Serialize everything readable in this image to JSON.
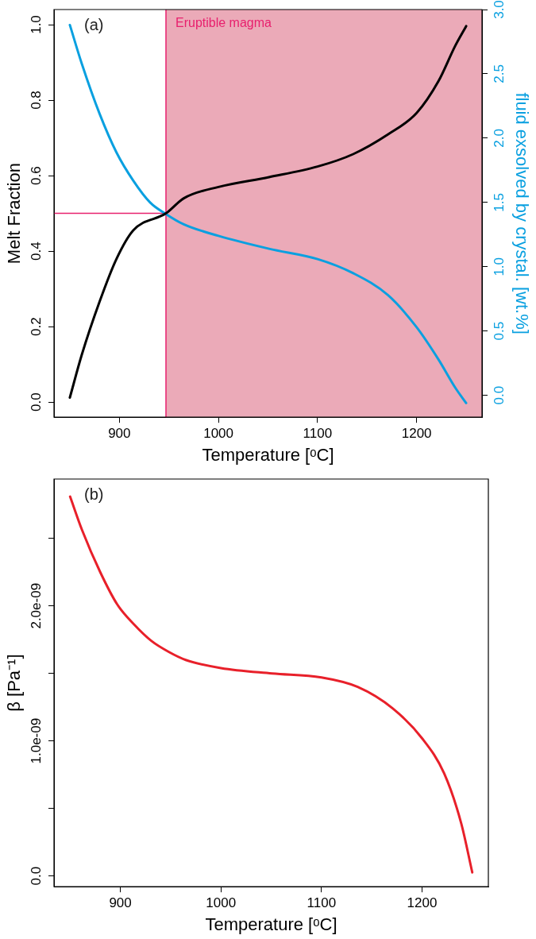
{
  "chart_data": [
    {
      "type": "line",
      "xlabel": "Temperature [ᵒC]",
      "ylabel": "Melt Fraction",
      "y2label": "fluid exsolved by crystal. [wt.%]",
      "annotations": [
        "(a)"
      ],
      "xlim": [
        834,
        1266
      ],
      "xticks": [
        900,
        1000,
        1100,
        1200
      ],
      "ylim": [
        -0.04,
        1.04
      ],
      "yticks": [
        {
          "value": 0,
          "label": "0.0"
        },
        {
          "value": 0.2,
          "label": "0.2"
        },
        {
          "value": 0.4,
          "label": "0.4"
        },
        {
          "value": 0.6,
          "label": "0.6"
        },
        {
          "value": 0.8,
          "label": "0.8"
        },
        {
          "value": 1,
          "label": "1.0"
        }
      ],
      "y2lim": [
        -0.17,
        3.0
      ],
      "y2ticks": [
        {
          "value": 0,
          "label": "0.0"
        },
        {
          "value": 0.5,
          "label": "0.5"
        },
        {
          "value": 1,
          "label": "1.0"
        },
        {
          "value": 1.5,
          "label": "1.5"
        },
        {
          "value": 2,
          "label": "2.0"
        },
        {
          "value": 2.5,
          "label": "2.5"
        },
        {
          "value": 3,
          "label": "3.0"
        }
      ],
      "series": [
        {
          "color": "#000000",
          "x": [
            850,
            862,
            880,
            897,
            914,
            947,
            965,
            1000,
            1051,
            1100,
            1136,
            1171,
            1200,
            1222,
            1239,
            1250
          ],
          "values": [
            0.012,
            0.125,
            0.266,
            0.379,
            0.455,
            0.5,
            0.54,
            0.57,
            0.596,
            0.624,
            0.657,
            0.709,
            0.766,
            0.85,
            0.944,
            0.996
          ]
        },
        {
          "color": "#0aa0e0",
          "axis": "y2",
          "x": [
            850,
            862,
            880,
            897,
            914,
            931,
            947,
            965,
            1000,
            1051,
            1100,
            1136,
            1171,
            1200,
            1222,
            1239,
            1250
          ],
          "values": [
            2.88,
            2.58,
            2.19,
            1.89,
            1.67,
            1.5,
            1.41,
            1.33,
            1.24,
            1.14,
            1.06,
            0.95,
            0.78,
            0.53,
            0.28,
            0.06,
            -0.06
          ]
        }
      ],
      "bands": [
        {
          "axis": "x",
          "from": 947,
          "to": 1266,
          "label": "Eruptible magma",
          "color": "#ebaab8"
        }
      ],
      "ref_lines": [
        {
          "axis": "x",
          "value": 947,
          "color": "#e8206e"
        },
        {
          "axis": "y",
          "value": 0.5,
          "color": "#e8206e"
        }
      ],
      "grid": false,
      "legend": false,
      "marker": "none",
      "line_style": "solid"
    },
    {
      "type": "line",
      "xlabel": "Temperature [ᵒC]",
      "ylabel": "β [Pa⁻¹]",
      "annotations": [
        "(b)"
      ],
      "xlim": [
        834,
        1266
      ],
      "xticks": [
        900,
        1000,
        1100,
        1200
      ],
      "ylim": [
        -8e-11,
        2.94e-09
      ],
      "yticks": [
        {
          "value": 0,
          "label": "0.0"
        },
        {
          "value": 5e-10,
          "label": null
        },
        {
          "value": 1e-09,
          "label": "1.0e-09"
        },
        {
          "value": 1.5e-09,
          "label": null
        },
        {
          "value": 2e-09,
          "label": "2.0e-09"
        },
        {
          "value": 2.5e-09,
          "label": null
        }
      ],
      "series": [
        {
          "color": "#e8202a",
          "x": [
            850,
            862,
            880,
            897,
            914,
            931,
            948,
            965,
            1000,
            1051,
            1100,
            1136,
            1171,
            1200,
            1222,
            1239,
            1250
          ],
          "values": [
            2.81e-09,
            2.56e-09,
            2.25e-09,
            2.01e-09,
            1.86e-09,
            1.74e-09,
            1.66e-09,
            1.6e-09,
            1.54e-09,
            1.5e-09,
            1.47e-09,
            1.4e-09,
            1.24e-09,
            1.02e-09,
            7.6e-10,
            3.9e-10,
            2.6e-11
          ]
        }
      ],
      "grid": false,
      "legend": false,
      "marker": "none",
      "line_style": "solid"
    }
  ]
}
